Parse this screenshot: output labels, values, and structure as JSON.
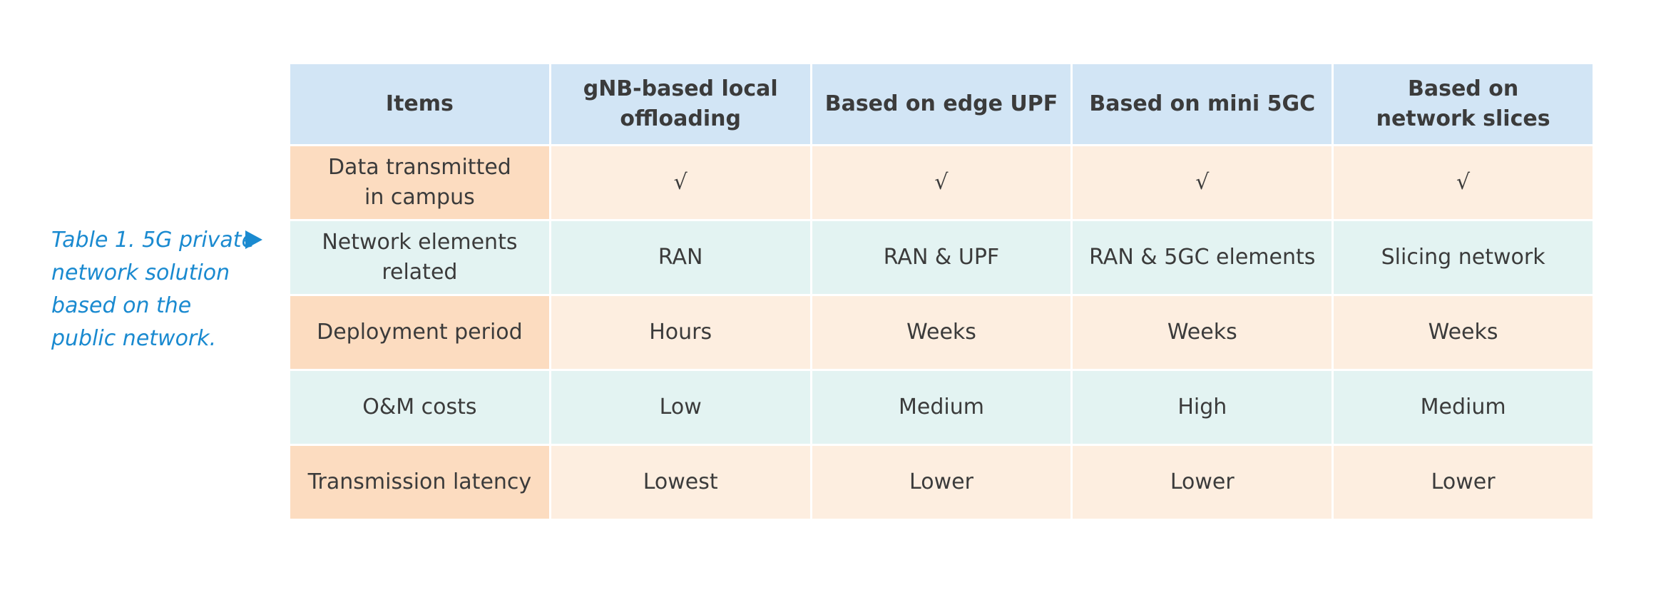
{
  "caption": {
    "lines": [
      "Table 1. 5G private",
      "network solution",
      "based on the",
      "public network."
    ],
    "color": "#1a8ad0",
    "arrow_icon": "triangle-right-icon"
  },
  "table": {
    "headers": [
      [
        "Items"
      ],
      [
        "gNB-based local",
        "offloading"
      ],
      [
        "Based on edge UPF"
      ],
      [
        "Based on mini 5GC"
      ],
      [
        "Based on",
        "network slices"
      ]
    ],
    "rows": [
      {
        "label": [
          "Data transmitted",
          "in campus"
        ],
        "values": [
          "√",
          "√",
          "√",
          "√"
        ],
        "style": "orange"
      },
      {
        "label": [
          "Network elements",
          "related"
        ],
        "values": [
          "RAN",
          "RAN & UPF",
          "RAN & 5GC elements",
          "Slicing network"
        ],
        "style": "teal"
      },
      {
        "label": [
          "Deployment period"
        ],
        "values": [
          "Hours",
          "Weeks",
          "Weeks",
          "Weeks"
        ],
        "style": "orange"
      },
      {
        "label": [
          "O&M costs"
        ],
        "values": [
          "Low",
          "Medium",
          "High",
          "Medium"
        ],
        "style": "teal"
      },
      {
        "label": [
          "Transmission latency"
        ],
        "values": [
          "Lowest",
          "Lower",
          "Lower",
          "Lower"
        ],
        "style": "orange"
      }
    ],
    "colors": {
      "header_bg": "#d2e5f5",
      "orange_label_bg": "#fcdcc0",
      "orange_value_bg": "#fdeee0",
      "teal_bg": "#e3f3f2",
      "text": "#3b3b3b"
    }
  }
}
